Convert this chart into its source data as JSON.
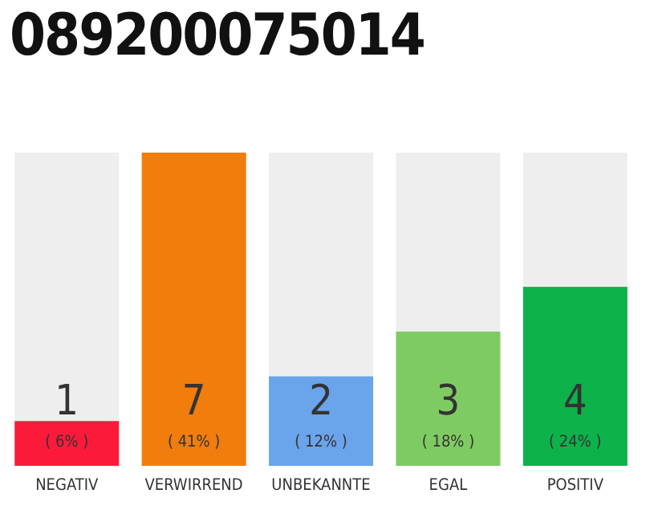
{
  "chart_data": {
    "type": "bar",
    "title": "089200075014",
    "categories": [
      "NEGATIV",
      "VERWIRREND",
      "UNBEKANNTE",
      "EGAL",
      "POSITIV"
    ],
    "values": [
      1,
      7,
      2,
      3,
      4
    ],
    "colors": [
      "#fc1a3a",
      "#f07d0c",
      "#6aa4ea",
      "#7fcb63",
      "#0db24a"
    ],
    "value_labels": [
      "1\n( 6% )",
      "7\n( 41% )",
      "2\n( 12% )",
      "3\n( 18% )",
      "4\n( 24% )"
    ]
  }
}
